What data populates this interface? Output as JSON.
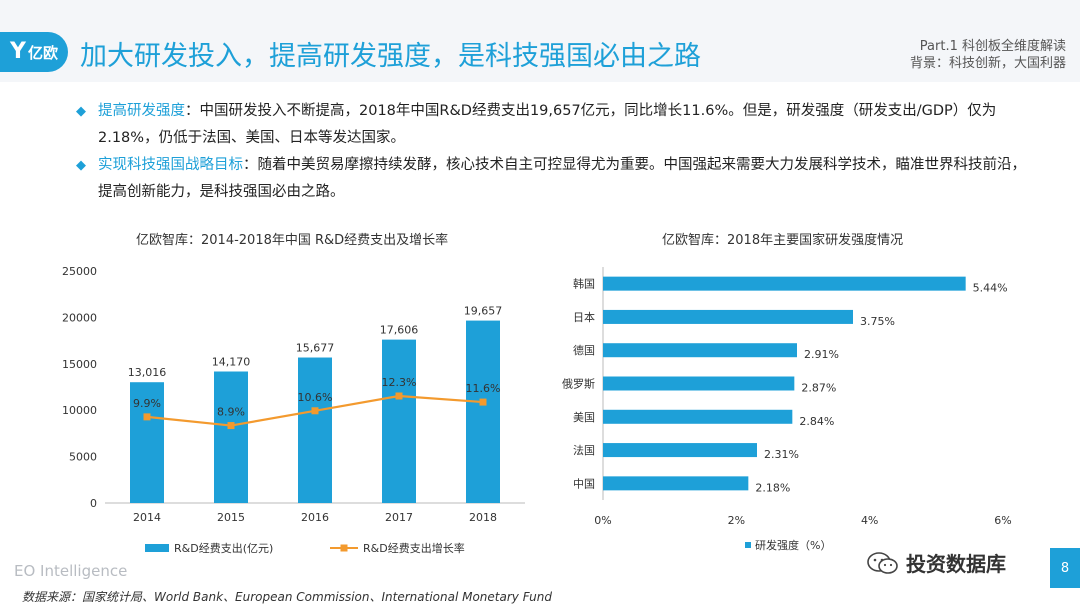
{
  "header": {
    "logo_text": "亿欧",
    "title": "加大研发投入，提高研发强度，是科技强国必由之路",
    "part_label": "Part.1 科创板全维度解读",
    "background_label": "背景：科技创新，大国利器"
  },
  "bullets": [
    {
      "key": "提高研发强度",
      "text": "：中国研发投入不断提高，2018年中国R&D经费支出19,657亿元，同比增长11.6%。但是，研发强度（研发支出/GDP）仅为2.18%，仍低于法国、美国、日本等发达国家。"
    },
    {
      "key": "实现科技强国战略目标",
      "text": "：随着中美贸易摩擦持续发酵，核心技术自主可控显得尤为重要。中国强起来需要大力发展科学技术，瞄准世界科技前沿，提高创新能力，是科技强国必由之路。"
    }
  ],
  "chart_data": [
    {
      "type": "bar",
      "title": "亿欧智库：2014-2018年中国 R&D经费支出及增长率",
      "categories": [
        "2014",
        "2015",
        "2016",
        "2017",
        "2018"
      ],
      "series": [
        {
          "name": "R&D经费支出(亿元)",
          "type": "bar",
          "values": [
            13016,
            14170,
            15677,
            17606,
            19657
          ],
          "labels": [
            "13,016",
            "14,170",
            "15,677",
            "17,606",
            "19,657"
          ]
        },
        {
          "name": "R&D经费支出增长率",
          "type": "line",
          "values": [
            9.9,
            8.9,
            10.6,
            12.3,
            11.6
          ],
          "labels": [
            "9.9%",
            "8.9%",
            "10.6%",
            "12.3%",
            "11.6%"
          ]
        }
      ],
      "yticks": [
        "0",
        "5000",
        "10000",
        "15000",
        "20000",
        "25000"
      ],
      "ylim": [
        0,
        25000
      ],
      "legend": "bottom",
      "colors": {
        "bar": "#1ea0d8",
        "line": "#f39a2e"
      }
    },
    {
      "type": "bar",
      "orientation": "horizontal",
      "title": "亿欧智库：2018年主要国家研发强度情况",
      "categories": [
        "韩国",
        "日本",
        "德国",
        "俄罗斯",
        "美国",
        "法国",
        "中国"
      ],
      "series": [
        {
          "name": "研发强度（%）",
          "values": [
            5.44,
            3.75,
            2.91,
            2.87,
            2.84,
            2.31,
            2.18
          ],
          "labels": [
            "5.44%",
            "3.75%",
            "2.91%",
            "2.87%",
            "2.84%",
            "2.31%",
            "2.18%"
          ]
        }
      ],
      "xticks": [
        "0%",
        "2%",
        "4%",
        "6%"
      ],
      "xlim": [
        0,
        6
      ],
      "legend": "bottom",
      "colors": {
        "bar": "#1ea0d8"
      }
    }
  ],
  "footer": {
    "brand": "EO Intelligence",
    "source": "数据来源：国家统计局、World Bank、European Commission、International Monetary Fund",
    "wechat_name": "投资数据库",
    "page_number": "8"
  }
}
